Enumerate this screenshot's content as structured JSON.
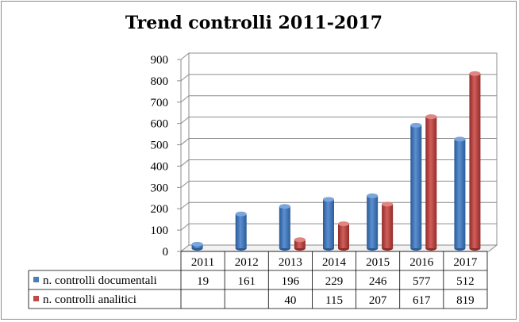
{
  "chart_data": {
    "type": "bar",
    "title": "Trend controlli 2011-2017",
    "categories": [
      "2011",
      "2012",
      "2013",
      "2014",
      "2015",
      "2016",
      "2017"
    ],
    "series": [
      {
        "name": "n. controlli documentali",
        "values": [
          19,
          161,
          196,
          229,
          246,
          577,
          512
        ],
        "labels": [
          "19",
          "161",
          "196",
          "229",
          "246",
          "577",
          "512"
        ],
        "color": "#4a7ebb"
      },
      {
        "name": "n. controlli analitici",
        "values": [
          null,
          null,
          40,
          115,
          207,
          617,
          819
        ],
        "labels": [
          "",
          "",
          "40",
          "115",
          "207",
          "617",
          "819"
        ],
        "color": "#be4b48"
      }
    ],
    "ylim": [
      0,
      900
    ],
    "yticks": [
      "0",
      "100",
      "200",
      "300",
      "400",
      "500",
      "600",
      "700",
      "800",
      "900"
    ],
    "grid": true,
    "legend": "data-table"
  }
}
